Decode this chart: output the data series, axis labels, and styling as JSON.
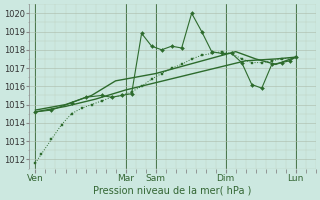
{
  "xlabel": "Pression niveau de la mer( hPa )",
  "background_color": "#cce8e0",
  "line_color": "#2d6b2d",
  "ylim": [
    1011.5,
    1020.5
  ],
  "yticks": [
    1012,
    1013,
    1014,
    1015,
    1016,
    1017,
    1018,
    1019,
    1020
  ],
  "day_labels": [
    "Ven",
    "Mar",
    "Sam",
    "Dim",
    "Lun"
  ],
  "day_positions": [
    0,
    4.5,
    6.0,
    9.5,
    13.0
  ],
  "vline_positions": [
    0,
    4.5,
    6.0,
    9.5,
    13.0
  ],
  "xlim": [
    -0.3,
    14.0
  ],
  "series1_x": [
    0,
    0.3,
    0.8,
    1.3,
    1.8,
    2.3,
    2.8,
    3.3,
    3.8,
    4.3,
    4.8,
    5.3,
    5.8,
    6.3,
    6.8,
    7.3,
    7.8,
    8.3,
    8.8,
    9.3,
    9.8,
    10.3,
    10.8,
    11.3,
    11.8,
    12.3,
    13.0
  ],
  "series1_y": [
    1011.8,
    1012.3,
    1013.1,
    1013.9,
    1014.5,
    1014.8,
    1015.0,
    1015.2,
    1015.4,
    1015.5,
    1015.7,
    1016.0,
    1016.4,
    1016.7,
    1017.0,
    1017.2,
    1017.5,
    1017.7,
    1017.8,
    1017.9,
    1017.8,
    1017.5,
    1017.3,
    1017.3,
    1017.4,
    1017.5,
    1017.6
  ],
  "series2_x": [
    0,
    0.8,
    1.8,
    2.5,
    3.3,
    3.8,
    4.3,
    4.8,
    5.3,
    5.8,
    6.3,
    6.8,
    7.3,
    7.8,
    8.3,
    8.8,
    9.3,
    9.8,
    10.3,
    10.8,
    11.3,
    11.8,
    12.3,
    12.7,
    13.0
  ],
  "series2_y": [
    1014.6,
    1014.7,
    1015.1,
    1015.4,
    1015.5,
    1015.4,
    1015.5,
    1015.6,
    1018.9,
    1018.2,
    1018.0,
    1018.2,
    1018.1,
    1020.0,
    1019.0,
    1017.9,
    1017.8,
    1017.8,
    1017.3,
    1016.1,
    1015.9,
    1017.2,
    1017.3,
    1017.4,
    1017.6
  ],
  "series3_x": [
    0,
    1.5,
    2.8,
    4.0,
    5.0,
    6.0,
    7.0,
    8.0,
    9.0,
    10.0,
    11.0,
    12.0,
    13.0
  ],
  "series3_y": [
    1014.7,
    1015.0,
    1015.5,
    1016.3,
    1016.5,
    1016.7,
    1017.0,
    1017.3,
    1017.6,
    1017.9,
    1017.5,
    1017.2,
    1017.6
  ],
  "series4_x": [
    0,
    1.5,
    3.0,
    4.5,
    6.0,
    7.5,
    9.0,
    10.5,
    12.0,
    13.0
  ],
  "series4_y": [
    1014.6,
    1014.9,
    1015.3,
    1015.8,
    1016.2,
    1016.6,
    1017.0,
    1017.4,
    1017.5,
    1017.6
  ]
}
